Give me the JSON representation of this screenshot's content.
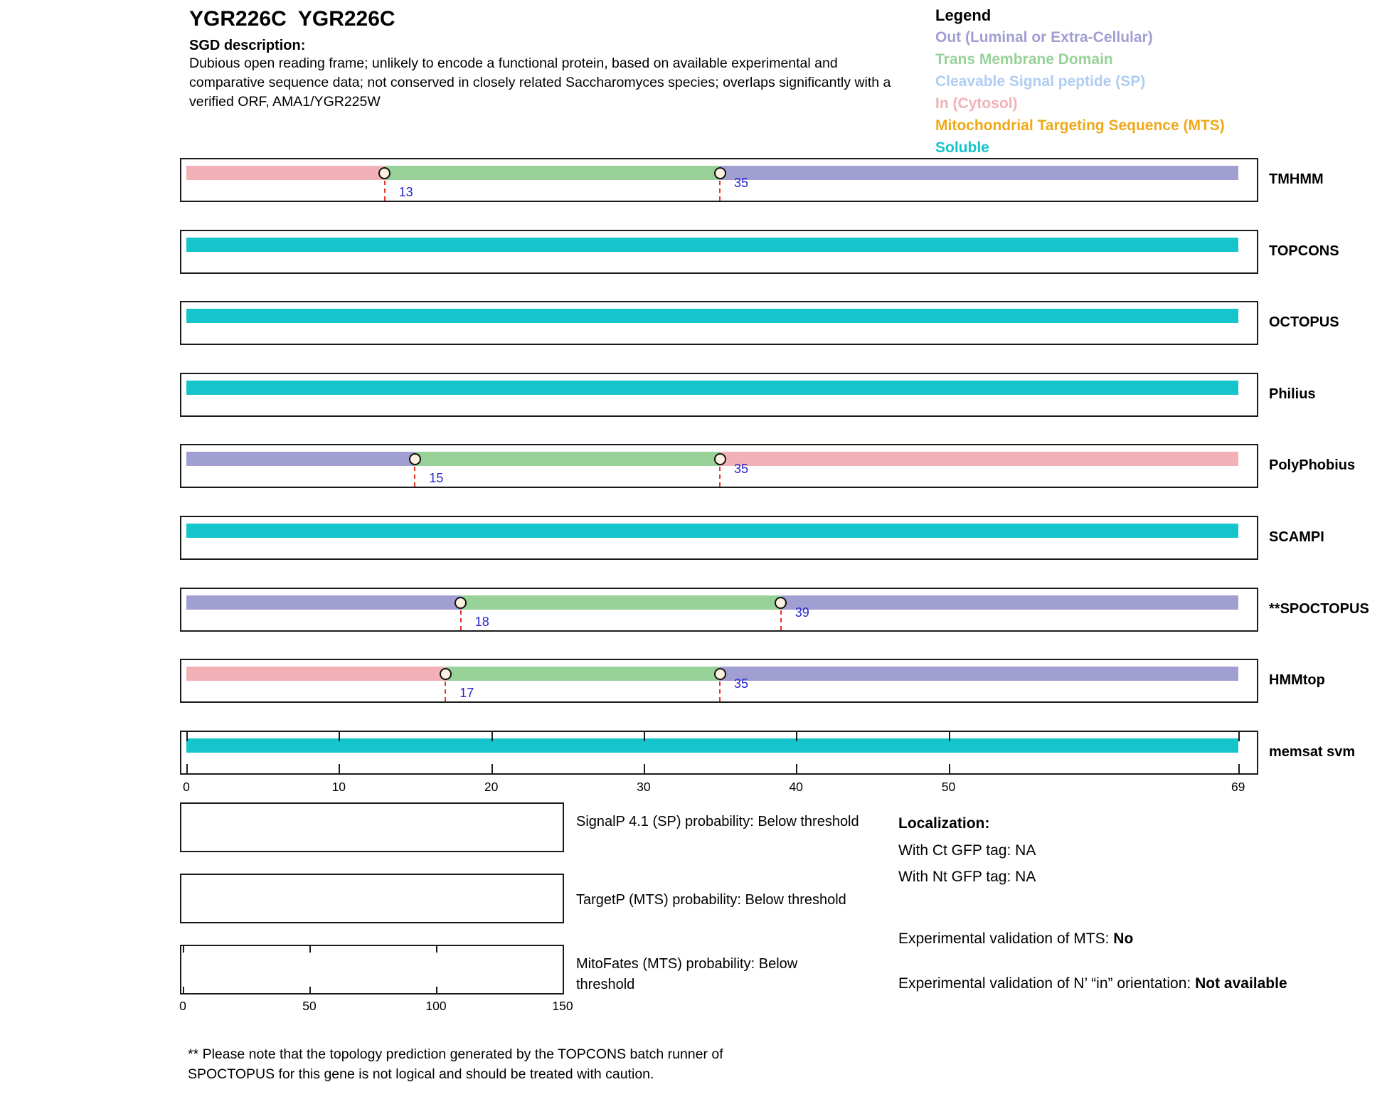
{
  "title": "YGR226C  YGR226C",
  "sgd_heading": "SGD description:",
  "sgd_description": "Dubious open reading frame; unlikely to encode a functional protein, based on available experimental and comparative sequence data; not conserved in closely related Saccharomyces species; overlaps significantly with a verified ORF, AMA1/YGR225W",
  "legend": {
    "title": "Legend",
    "items": [
      {
        "label": "Out (Luminal or Extra-Cellular)",
        "color_key": "out"
      },
      {
        "label": "Trans Membrane Domain",
        "color_key": "tm"
      },
      {
        "label": "Cleavable Signal peptide (SP)",
        "color_key": "sp"
      },
      {
        "label": "In (Cytosol)",
        "color_key": "in"
      },
      {
        "label": "Mitochondrial Targeting Sequence (MTS)",
        "color_key": "mts"
      },
      {
        "label": "Soluble",
        "color_key": "soluble"
      }
    ]
  },
  "colors": {
    "out": "#a19ed1",
    "tm": "#97d198",
    "sp": "#aecdf3",
    "in": "#f1b1b6",
    "mts": "#efa918",
    "soluble": "#14c5cb",
    "marker_line": "#e93323",
    "marker_label": "#2727cc",
    "marker_fill": "#fbf1de"
  },
  "chart_data": {
    "type": "span_tracks",
    "title": "Topology predictions for YGR226C",
    "x_range": [
      0,
      69
    ],
    "x_ticks": [
      0,
      10,
      20,
      30,
      40,
      50,
      69
    ],
    "tracks": [
      {
        "label": "TMHMM",
        "segments": [
          {
            "start": 0,
            "end": 13,
            "region": "in"
          },
          {
            "start": 13,
            "end": 35,
            "region": "tm"
          },
          {
            "start": 35,
            "end": 69,
            "region": "out"
          }
        ],
        "markers": [
          {
            "pos": 13,
            "label": "13"
          },
          {
            "pos": 35,
            "label": "35"
          }
        ]
      },
      {
        "label": "TOPCONS",
        "segments": [
          {
            "start": 0,
            "end": 69,
            "region": "soluble"
          }
        ],
        "markers": []
      },
      {
        "label": "OCTOPUS",
        "segments": [
          {
            "start": 0,
            "end": 69,
            "region": "soluble"
          }
        ],
        "markers": []
      },
      {
        "label": "Philius",
        "segments": [
          {
            "start": 0,
            "end": 69,
            "region": "soluble"
          }
        ],
        "markers": []
      },
      {
        "label": "PolyPhobius",
        "segments": [
          {
            "start": 0,
            "end": 15,
            "region": "out"
          },
          {
            "start": 15,
            "end": 35,
            "region": "tm"
          },
          {
            "start": 35,
            "end": 69,
            "region": "in"
          }
        ],
        "markers": [
          {
            "pos": 15,
            "label": "15"
          },
          {
            "pos": 35,
            "label": "35"
          }
        ]
      },
      {
        "label": "SCAMPI",
        "segments": [
          {
            "start": 0,
            "end": 69,
            "region": "soluble"
          }
        ],
        "markers": []
      },
      {
        "label": "**SPOCTOPUS",
        "segments": [
          {
            "start": 0,
            "end": 18,
            "region": "out"
          },
          {
            "start": 18,
            "end": 39,
            "region": "tm"
          },
          {
            "start": 39,
            "end": 69,
            "region": "out"
          }
        ],
        "markers": [
          {
            "pos": 18,
            "label": "18"
          },
          {
            "pos": 39,
            "label": "39"
          }
        ]
      },
      {
        "label": "HMMtop",
        "segments": [
          {
            "start": 0,
            "end": 17,
            "region": "in"
          },
          {
            "start": 17,
            "end": 35,
            "region": "tm"
          },
          {
            "start": 35,
            "end": 69,
            "region": "out"
          }
        ],
        "markers": [
          {
            "pos": 17,
            "label": "17"
          },
          {
            "pos": 35,
            "label": "35"
          }
        ]
      },
      {
        "label": "memsat svm",
        "segments": [
          {
            "start": 0,
            "end": 69,
            "region": "soluble"
          }
        ],
        "markers": [],
        "axis_ticks_in_box": true
      }
    ],
    "probability_plots": [
      {
        "label": "SignalP 4.1 (SP) probability: Below threshold",
        "values": []
      },
      {
        "label": "TargetP (MTS) probability: Below threshold",
        "values": []
      },
      {
        "label": "MitoFates (MTS) probability: Below threshold",
        "values": [],
        "x_ticks": [
          0,
          50,
          100,
          150
        ],
        "x_range": [
          0,
          150
        ]
      }
    ]
  },
  "localization": {
    "heading": "Localization:",
    "lines": [
      "With Ct GFP tag: NA",
      "With Nt GFP tag: NA"
    ],
    "mts_label": "Experimental validation of MTS: ",
    "mts_value": "No",
    "orientation_label": "Experimental validation of N’ “in” orientation: ",
    "orientation_value": "Not available"
  },
  "footnote": "** Please note that the topology prediction generated by the TOPCONS batch runner of SPOCTOPUS for this gene is not logical and should be treated with caution."
}
